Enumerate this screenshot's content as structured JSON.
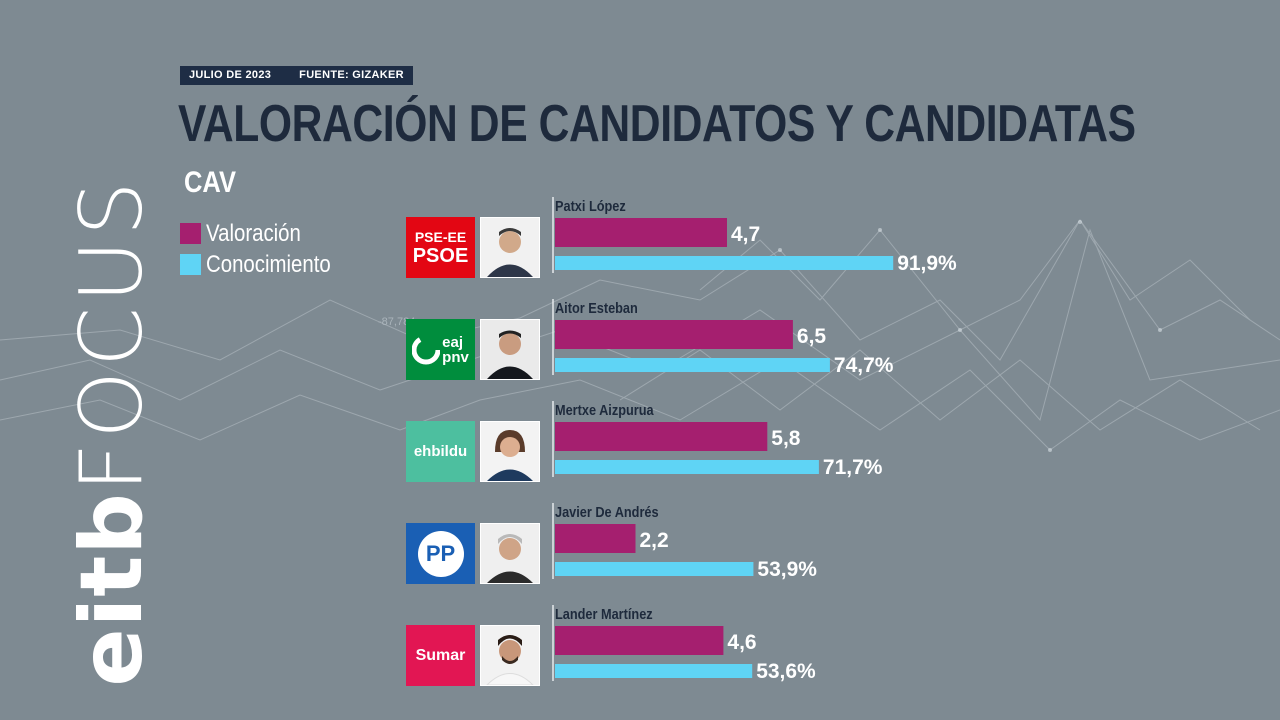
{
  "header": {
    "date": "JULIO DE 2023",
    "source": "FUENTE: GIZAKER",
    "title": "VALORACIÓN DE CANDIDATOS Y CANDIDATAS",
    "region": "CAV"
  },
  "brand": {
    "text_bold": "eitb",
    "text_light": "FOCUS"
  },
  "background": {
    "decor_number": "-87,784"
  },
  "parties": [
    {
      "name": "PSE-EE PSOE",
      "line1": "PSE-EE",
      "line2": "PSOE",
      "color": "#e30613"
    },
    {
      "name": "EAJ-PNV",
      "line1": "eaj",
      "line2": "pnv",
      "color": "#008d3d"
    },
    {
      "name": "EH Bildu",
      "line1": "ehbildu",
      "color": "#4dbf9f"
    },
    {
      "name": "PP",
      "line1": "PP",
      "color": "#1a5fb4"
    },
    {
      "name": "Sumar",
      "line1": "Sumar",
      "color": "#e21653"
    }
  ],
  "chart_data": {
    "type": "bar",
    "orientation": "horizontal",
    "categories": [
      "Patxi López",
      "Aitor Esteban",
      "Mertxe Aizpurua",
      "Javier De Andrés",
      "Lander Martínez"
    ],
    "series": [
      {
        "name": "Valoración",
        "values": [
          4.7,
          6.5,
          5.8,
          2.2,
          4.6
        ],
        "labels": [
          "4,7",
          "6,5",
          "5,8",
          "2,2",
          "4,6"
        ],
        "color": "#a51f6f",
        "scale_max": 10
      },
      {
        "name": "Conocimiento",
        "values": [
          91.9,
          74.7,
          71.7,
          53.9,
          53.6
        ],
        "labels": [
          "91,9%",
          "74,7%",
          "71,7%",
          "53,9%",
          "53,6%"
        ],
        "color": "#5fd4f5",
        "scale_max": 100
      }
    ],
    "legend_position": "top-left",
    "grid": false
  }
}
